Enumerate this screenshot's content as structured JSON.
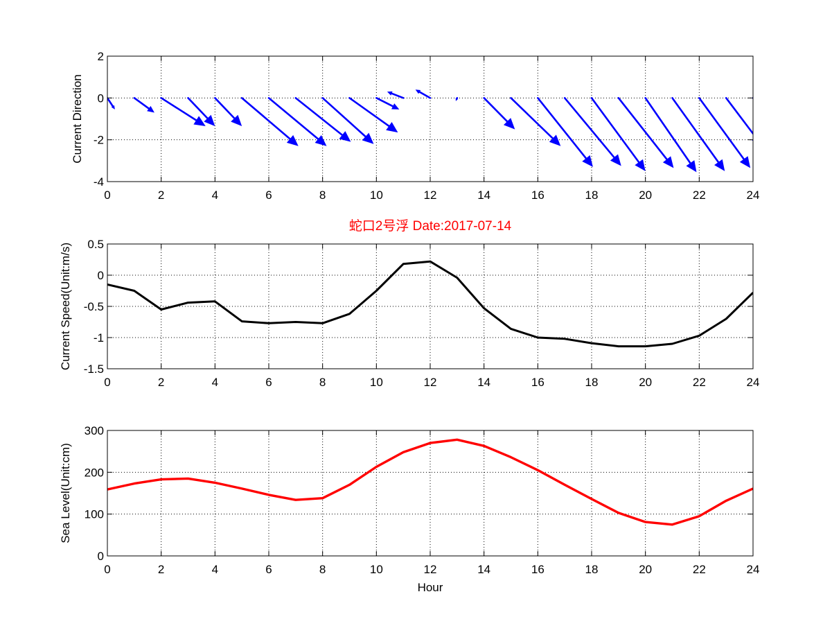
{
  "chart_data": [
    {
      "type": "quiver",
      "ylabel": "Current Direction",
      "xlim": [
        0,
        24
      ],
      "ylim": [
        -4,
        2
      ],
      "xticks": [
        "0",
        "2",
        "4",
        "6",
        "8",
        "10",
        "12",
        "14",
        "16",
        "18",
        "20",
        "22",
        "24"
      ],
      "yticks": [
        "2",
        "0",
        "-2",
        "-4"
      ],
      "grid": true,
      "color": "#0000ff",
      "x": [
        0,
        1,
        2,
        3,
        4,
        5,
        6,
        7,
        8,
        9,
        10,
        11,
        12,
        13,
        14,
        15,
        16,
        17,
        18,
        19,
        20,
        21,
        22,
        23,
        24
      ],
      "u": [
        0.28,
        0.75,
        1.65,
        1.0,
        1.0,
        2.1,
        2.15,
        2.05,
        1.9,
        1.8,
        0.85,
        -0.6,
        -0.55,
        -0.05,
        1.15,
        1.85,
        2.05,
        2.1,
        2.0,
        2.05,
        1.9,
        1.95,
        1.9,
        1.35,
        0.28
      ],
      "v": [
        -0.55,
        -0.7,
        -1.35,
        -1.35,
        -1.35,
        -2.3,
        -2.3,
        -2.1,
        -2.2,
        -1.65,
        -0.55,
        0.3,
        0.4,
        -0.15,
        -1.5,
        -2.3,
        -3.3,
        -3.25,
        -3.5,
        -3.35,
        -3.55,
        -3.5,
        -3.35,
        -2.3,
        -0.5
      ]
    },
    {
      "type": "line",
      "title": "蛇口2号浮   Date:2017-07-14",
      "ylabel": "Current Speed(Unit:m/s)",
      "xlim": [
        0,
        24
      ],
      "ylim": [
        -1.5,
        0.5
      ],
      "xticks": [
        "0",
        "2",
        "4",
        "6",
        "8",
        "10",
        "12",
        "14",
        "16",
        "18",
        "20",
        "22",
        "24"
      ],
      "yticks": [
        "0.5",
        "0",
        "-0.5",
        "-1",
        "-1.5"
      ],
      "grid": true,
      "color": "#000000",
      "x": [
        0,
        1,
        2,
        3,
        4,
        5,
        6,
        7,
        8,
        9,
        10,
        11,
        12,
        13,
        14,
        15,
        16,
        17,
        18,
        19,
        20,
        21,
        22,
        23,
        24
      ],
      "y": [
        -0.15,
        -0.25,
        -0.55,
        -0.44,
        -0.42,
        -0.74,
        -0.77,
        -0.75,
        -0.77,
        -0.62,
        -0.25,
        0.18,
        0.22,
        -0.04,
        -0.53,
        -0.86,
        -1.0,
        -1.02,
        -1.09,
        -1.14,
        -1.14,
        -1.1,
        -0.97,
        -0.7,
        -0.28
      ]
    },
    {
      "type": "line",
      "xlabel": "Hour",
      "ylabel": "Sea Level(Unit:cm)",
      "xlim": [
        0,
        24
      ],
      "ylim": [
        0,
        300
      ],
      "xticks": [
        "0",
        "2",
        "4",
        "6",
        "8",
        "10",
        "12",
        "14",
        "16",
        "18",
        "20",
        "22",
        "24"
      ],
      "yticks": [
        "300",
        "200",
        "100",
        "0"
      ],
      "grid": true,
      "color": "#ff0000",
      "x": [
        0,
        1,
        2,
        3,
        4,
        5,
        6,
        7,
        8,
        9,
        10,
        11,
        12,
        13,
        14,
        15,
        16,
        17,
        18,
        19,
        20,
        21,
        22,
        23,
        24
      ],
      "y": [
        159,
        173,
        183,
        185,
        175,
        161,
        146,
        134,
        138,
        170,
        213,
        248,
        270,
        278,
        263,
        236,
        205,
        170,
        136,
        103,
        81,
        75,
        95,
        132,
        161
      ]
    }
  ]
}
